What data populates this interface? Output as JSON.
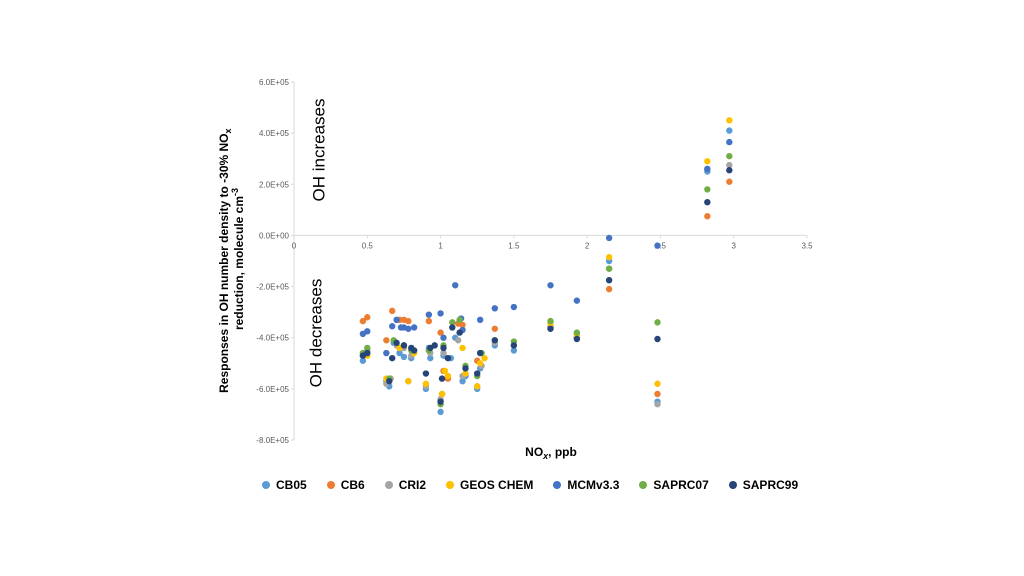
{
  "chart_data": {
    "type": "scatter",
    "title": "",
    "xlabel_main": "NO",
    "xlabel_sub": "x",
    "xlabel_rest": ", ppb",
    "ylabel_line1_main": "Responses in OH number density to -30% NO",
    "ylabel_line1_sub": "x",
    "ylabel_line2_main": "reduction, molecule cm",
    "ylabel_line2_sup": "-3",
    "xlim": [
      0,
      3.5
    ],
    "ylim": [
      -800000,
      600000
    ],
    "xticks": [
      0,
      0.5,
      1,
      1.5,
      2,
      2.5,
      3,
      3.5
    ],
    "xtick_labels": [
      "0",
      "0.5",
      "1",
      "1.5",
      "2",
      "2.5",
      "3",
      "3.5"
    ],
    "yticks": [
      600000,
      400000,
      200000,
      0,
      -200000,
      -400000,
      -600000,
      -800000
    ],
    "ytick_labels": [
      "6.0E+05",
      "4.0E+05",
      "2.0E+05",
      "0.0E+00",
      "-2.0E+05",
      "-4.0E+05",
      "-6.0E+05",
      "-8.0E+05"
    ],
    "annotations": {
      "increases": "OH increases",
      "decreases": "OH decreases"
    },
    "legend_placement": "bottom",
    "grid": false,
    "series": [
      {
        "name": "CB05",
        "color": "#5B9BD5",
        "points": [
          [
            0.47,
            -490000
          ],
          [
            0.5,
            -460000
          ],
          [
            0.63,
            -570000
          ],
          [
            0.65,
            -590000
          ],
          [
            0.68,
            -420000
          ],
          [
            0.72,
            -460000
          ],
          [
            0.75,
            -475000
          ],
          [
            0.78,
            -570000
          ],
          [
            0.8,
            -480000
          ],
          [
            0.9,
            -600000
          ],
          [
            0.92,
            -440000
          ],
          [
            0.93,
            -480000
          ],
          [
            1.0,
            -690000
          ],
          [
            1.01,
            -620000
          ],
          [
            1.02,
            -470000
          ],
          [
            1.07,
            -480000
          ],
          [
            1.1,
            -400000
          ],
          [
            1.15,
            -570000
          ],
          [
            1.17,
            -550000
          ],
          [
            1.25,
            -600000
          ],
          [
            1.27,
            -520000
          ],
          [
            1.37,
            -430000
          ],
          [
            1.5,
            -450000
          ],
          [
            1.75,
            -360000
          ],
          [
            1.93,
            -400000
          ],
          [
            2.15,
            -100000
          ],
          [
            2.48,
            -650000
          ],
          [
            2.82,
            250000
          ],
          [
            2.97,
            410000
          ]
        ]
      },
      {
        "name": "CB6",
        "color": "#ED7D31",
        "points": [
          [
            0.47,
            -335000
          ],
          [
            0.5,
            -320000
          ],
          [
            0.63,
            -410000
          ],
          [
            0.67,
            -295000
          ],
          [
            0.72,
            -330000
          ],
          [
            0.75,
            -330000
          ],
          [
            0.78,
            -335000
          ],
          [
            0.92,
            -335000
          ],
          [
            1.0,
            -380000
          ],
          [
            1.02,
            -530000
          ],
          [
            1.05,
            -560000
          ],
          [
            1.12,
            -345000
          ],
          [
            1.15,
            -350000
          ],
          [
            1.25,
            -490000
          ],
          [
            1.37,
            -365000
          ],
          [
            1.75,
            -360000
          ],
          [
            1.93,
            -400000
          ],
          [
            2.15,
            -210000
          ],
          [
            2.48,
            -620000
          ],
          [
            2.82,
            75000
          ],
          [
            2.97,
            210000
          ]
        ]
      },
      {
        "name": "CRI2",
        "color": "#A5A5A5",
        "points": [
          [
            0.47,
            -470000
          ],
          [
            0.5,
            -450000
          ],
          [
            0.63,
            -580000
          ],
          [
            0.66,
            -560000
          ],
          [
            0.7,
            -430000
          ],
          [
            0.75,
            -440000
          ],
          [
            0.8,
            -470000
          ],
          [
            0.9,
            -590000
          ],
          [
            0.93,
            -460000
          ],
          [
            1.0,
            -640000
          ],
          [
            1.02,
            -460000
          ],
          [
            1.12,
            -410000
          ],
          [
            1.15,
            -550000
          ],
          [
            1.25,
            -590000
          ],
          [
            1.28,
            -510000
          ],
          [
            1.37,
            -420000
          ],
          [
            1.5,
            -430000
          ],
          [
            1.75,
            -355000
          ],
          [
            1.93,
            -395000
          ],
          [
            2.15,
            -130000
          ],
          [
            2.48,
            -660000
          ],
          [
            2.82,
            260000
          ],
          [
            2.97,
            275000
          ]
        ]
      },
      {
        "name": "GEOS CHEM",
        "color": "#FFC000",
        "points": [
          [
            0.5,
            -470000
          ],
          [
            0.63,
            -560000
          ],
          [
            0.72,
            -440000
          ],
          [
            0.78,
            -570000
          ],
          [
            0.82,
            -460000
          ],
          [
            0.9,
            -580000
          ],
          [
            1.01,
            -620000
          ],
          [
            1.03,
            -530000
          ],
          [
            1.05,
            -550000
          ],
          [
            1.15,
            -440000
          ],
          [
            1.17,
            -540000
          ],
          [
            1.25,
            -590000
          ],
          [
            1.27,
            -500000
          ],
          [
            1.3,
            -480000
          ],
          [
            1.75,
            -345000
          ],
          [
            1.93,
            -390000
          ],
          [
            2.15,
            -85000
          ],
          [
            2.48,
            -580000
          ],
          [
            2.82,
            290000
          ],
          [
            2.97,
            450000
          ]
        ]
      },
      {
        "name": "MCMv3.3",
        "color": "#4472C4",
        "points": [
          [
            0.47,
            -385000
          ],
          [
            0.5,
            -375000
          ],
          [
            0.63,
            -460000
          ],
          [
            0.67,
            -355000
          ],
          [
            0.7,
            -330000
          ],
          [
            0.73,
            -360000
          ],
          [
            0.75,
            -360000
          ],
          [
            0.78,
            -365000
          ],
          [
            0.82,
            -360000
          ],
          [
            0.92,
            -310000
          ],
          [
            1.0,
            -305000
          ],
          [
            1.02,
            -400000
          ],
          [
            1.1,
            -195000
          ],
          [
            1.14,
            -325000
          ],
          [
            1.15,
            -370000
          ],
          [
            1.27,
            -330000
          ],
          [
            1.37,
            -285000
          ],
          [
            1.5,
            -280000
          ],
          [
            1.75,
            -195000
          ],
          [
            1.93,
            -255000
          ],
          [
            2.15,
            -10000
          ],
          [
            2.48,
            -40000
          ],
          [
            2.82,
            260000
          ],
          [
            2.97,
            365000
          ]
        ]
      },
      {
        "name": "SAPRC07",
        "color": "#70AD47",
        "points": [
          [
            0.47,
            -460000
          ],
          [
            0.5,
            -440000
          ],
          [
            0.65,
            -560000
          ],
          [
            0.68,
            -410000
          ],
          [
            0.75,
            -430000
          ],
          [
            0.8,
            -450000
          ],
          [
            0.92,
            -450000
          ],
          [
            1.0,
            -660000
          ],
          [
            1.02,
            -430000
          ],
          [
            1.08,
            -340000
          ],
          [
            1.13,
            -330000
          ],
          [
            1.17,
            -510000
          ],
          [
            1.25,
            -550000
          ],
          [
            1.28,
            -460000
          ],
          [
            1.37,
            -410000
          ],
          [
            1.5,
            -415000
          ],
          [
            1.75,
            -335000
          ],
          [
            1.93,
            -380000
          ],
          [
            2.15,
            -130000
          ],
          [
            2.48,
            -340000
          ],
          [
            2.82,
            180000
          ],
          [
            2.97,
            310000
          ]
        ]
      },
      {
        "name": "SAPRC99",
        "color": "#264478",
        "points": [
          [
            0.47,
            -470000
          ],
          [
            0.5,
            -460000
          ],
          [
            0.65,
            -570000
          ],
          [
            0.67,
            -480000
          ],
          [
            0.7,
            -420000
          ],
          [
            0.75,
            -430000
          ],
          [
            0.8,
            -440000
          ],
          [
            0.82,
            -450000
          ],
          [
            0.9,
            -540000
          ],
          [
            0.93,
            -440000
          ],
          [
            0.96,
            -430000
          ],
          [
            1.0,
            -650000
          ],
          [
            1.01,
            -560000
          ],
          [
            1.02,
            -440000
          ],
          [
            1.05,
            -480000
          ],
          [
            1.08,
            -360000
          ],
          [
            1.13,
            -380000
          ],
          [
            1.17,
            -520000
          ],
          [
            1.25,
            -540000
          ],
          [
            1.27,
            -460000
          ],
          [
            1.37,
            -410000
          ],
          [
            1.5,
            -430000
          ],
          [
            1.75,
            -365000
          ],
          [
            1.93,
            -405000
          ],
          [
            2.15,
            -175000
          ],
          [
            2.48,
            -405000
          ],
          [
            2.82,
            130000
          ],
          [
            2.97,
            255000
          ]
        ]
      }
    ]
  }
}
